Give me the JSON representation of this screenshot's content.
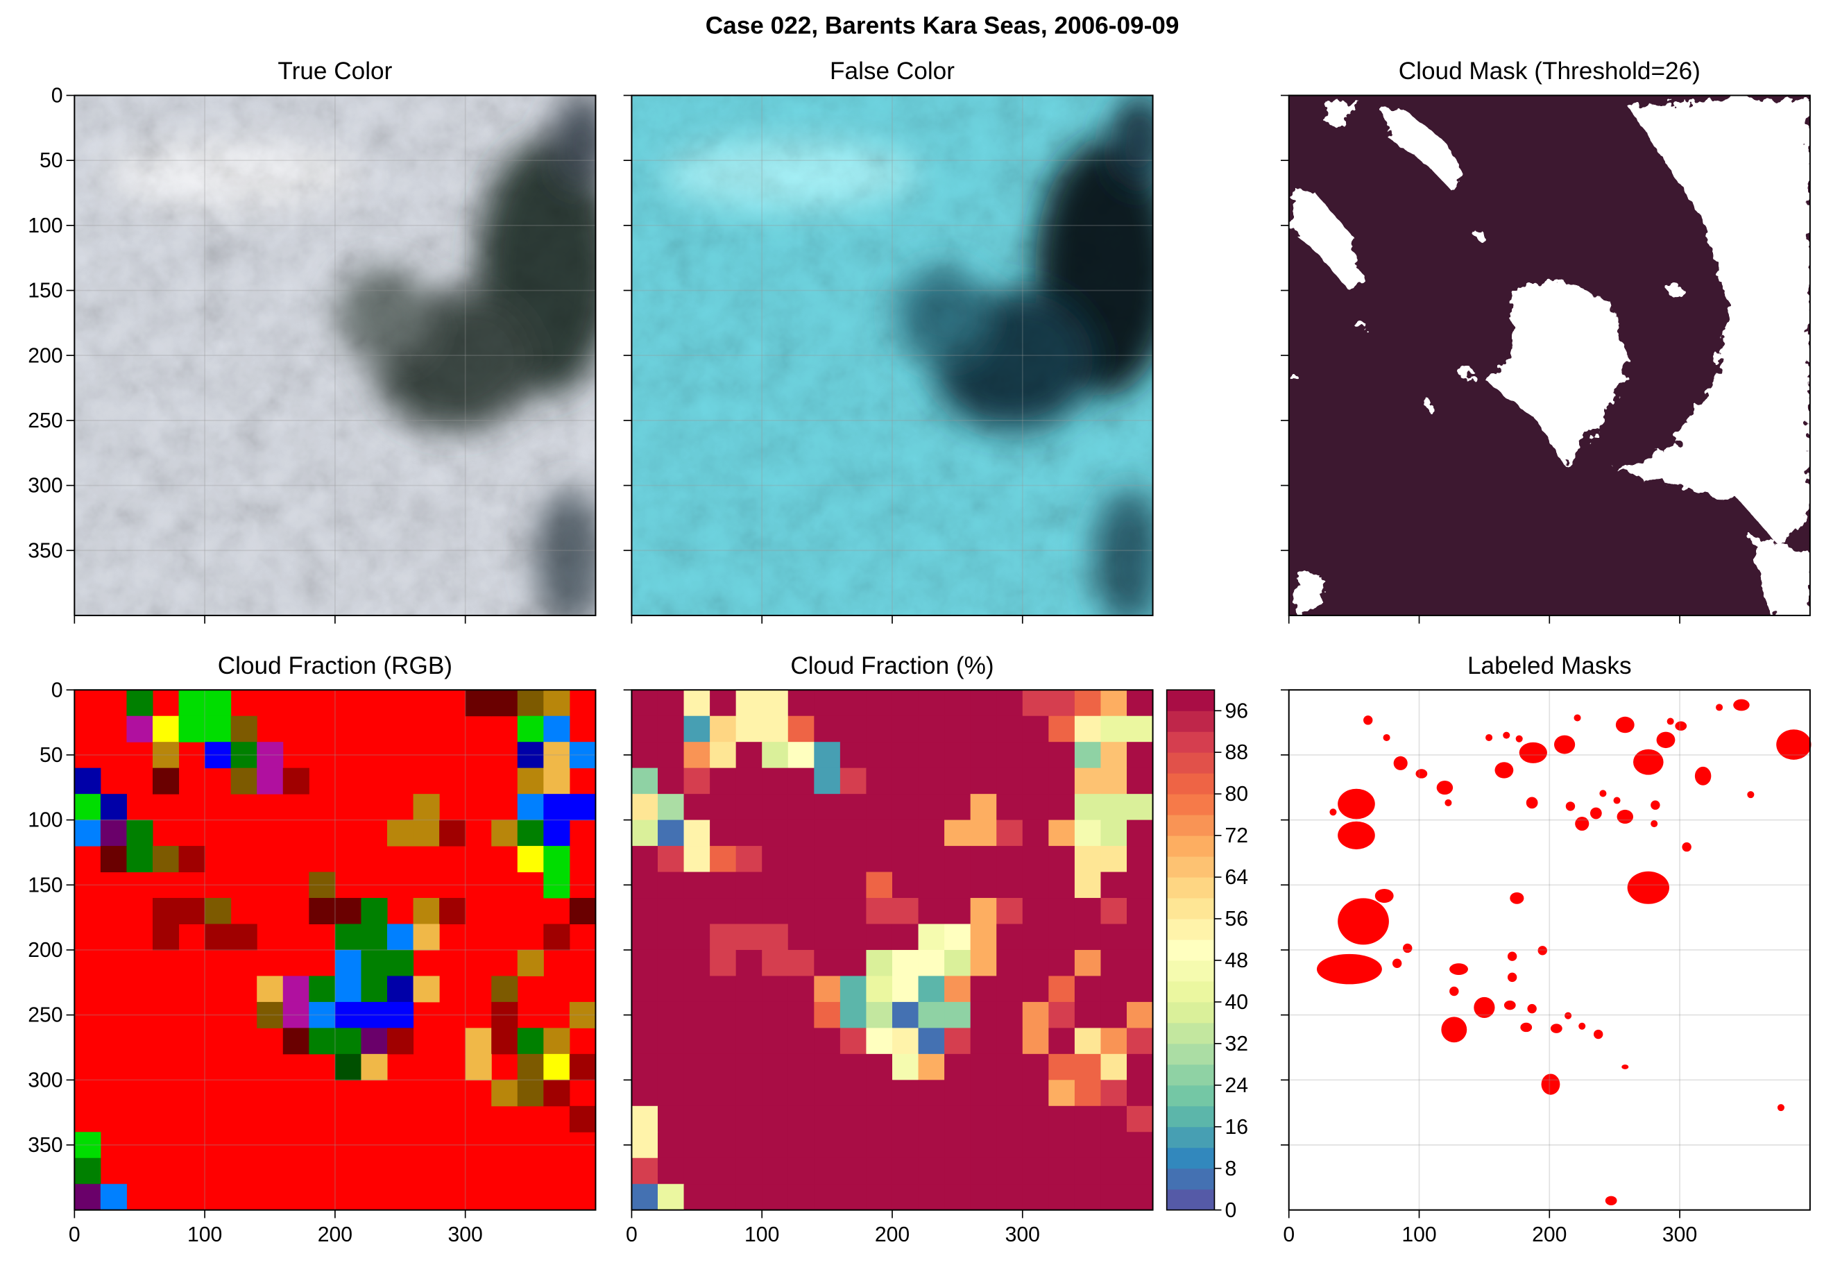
{
  "title": "Case 022, Barents Kara Seas, 2006-09-09",
  "chart_data": [
    {
      "type": "image",
      "title": "True Color",
      "xlim": [
        0,
        400
      ],
      "ylim": [
        400,
        0
      ],
      "xticks": [
        0,
        100,
        200,
        300
      ],
      "yticks": [
        0,
        50,
        100,
        150,
        200,
        250,
        300,
        350
      ],
      "grid": true
    },
    {
      "type": "image",
      "title": "False Color",
      "xlim": [
        0,
        400
      ],
      "ylim": [
        400,
        0
      ],
      "xticks": [
        0,
        100,
        200,
        300
      ],
      "yticks": [
        0,
        50,
        100,
        150,
        200,
        250,
        300,
        350
      ],
      "grid": true
    },
    {
      "type": "image",
      "title": "Cloud Mask (Threshold=26)",
      "xlim": [
        0,
        400
      ],
      "ylim": [
        400,
        0
      ],
      "xticks": [
        0,
        100,
        200,
        300
      ],
      "yticks": [
        0,
        50,
        100,
        150,
        200,
        250,
        300,
        350
      ],
      "grid": false
    },
    {
      "type": "grid",
      "title": "Cloud Fraction (RGB)",
      "xlim": [
        0,
        400
      ],
      "ylim": [
        400,
        0
      ],
      "xticks": [
        0,
        100,
        200,
        300
      ],
      "yticks": [
        0,
        50,
        100,
        150,
        200,
        250,
        300,
        350
      ],
      "grid": true,
      "rows": 20,
      "cols": 20,
      "default_color": "#ff0000",
      "cells": [
        {
          "row": 0,
          "col": 2,
          "color": "#008000"
        },
        {
          "row": 0,
          "col": 4,
          "color": "#00dd00"
        },
        {
          "row": 0,
          "col": 5,
          "color": "#00dd00"
        },
        {
          "row": 0,
          "col": 15,
          "color": "#6a0000"
        },
        {
          "row": 0,
          "col": 16,
          "color": "#6a0000"
        },
        {
          "row": 0,
          "col": 17,
          "color": "#7d5a00"
        },
        {
          "row": 0,
          "col": 18,
          "color": "#b8860b"
        },
        {
          "row": 1,
          "col": 2,
          "color": "#b0109f"
        },
        {
          "row": 1,
          "col": 3,
          "color": "#ffff00"
        },
        {
          "row": 1,
          "col": 4,
          "color": "#00dd00"
        },
        {
          "row": 1,
          "col": 5,
          "color": "#00dd00"
        },
        {
          "row": 1,
          "col": 6,
          "color": "#7d5a00"
        },
        {
          "row": 1,
          "col": 17,
          "color": "#00dd00"
        },
        {
          "row": 1,
          "col": 18,
          "color": "#0080ff"
        },
        {
          "row": 2,
          "col": 3,
          "color": "#b8860b"
        },
        {
          "row": 2,
          "col": 5,
          "color": "#0000ff"
        },
        {
          "row": 2,
          "col": 6,
          "color": "#008000"
        },
        {
          "row": 2,
          "col": 7,
          "color": "#b0109f"
        },
        {
          "row": 2,
          "col": 17,
          "color": "#0000a8"
        },
        {
          "row": 2,
          "col": 18,
          "color": "#f0b848"
        },
        {
          "row": 2,
          "col": 19,
          "color": "#0080ff"
        },
        {
          "row": 3,
          "col": 0,
          "color": "#0000a8"
        },
        {
          "row": 3,
          "col": 3,
          "color": "#6a0000"
        },
        {
          "row": 3,
          "col": 6,
          "color": "#7d5a00"
        },
        {
          "row": 3,
          "col": 7,
          "color": "#b0109f"
        },
        {
          "row": 3,
          "col": 8,
          "color": "#a00000"
        },
        {
          "row": 3,
          "col": 17,
          "color": "#b8860b"
        },
        {
          "row": 3,
          "col": 18,
          "color": "#f0b848"
        },
        {
          "row": 4,
          "col": 0,
          "color": "#00dd00"
        },
        {
          "row": 4,
          "col": 1,
          "color": "#0000a8"
        },
        {
          "row": 4,
          "col": 13,
          "color": "#b8860b"
        },
        {
          "row": 4,
          "col": 17,
          "color": "#0080ff"
        },
        {
          "row": 4,
          "col": 18,
          "color": "#0000ff"
        },
        {
          "row": 4,
          "col": 19,
          "color": "#0000ff"
        },
        {
          "row": 5,
          "col": 0,
          "color": "#0080ff"
        },
        {
          "row": 5,
          "col": 1,
          "color": "#6a006a"
        },
        {
          "row": 5,
          "col": 2,
          "color": "#008000"
        },
        {
          "row": 5,
          "col": 12,
          "color": "#b8860b"
        },
        {
          "row": 5,
          "col": 13,
          "color": "#b8860b"
        },
        {
          "row": 5,
          "col": 14,
          "color": "#a00000"
        },
        {
          "row": 5,
          "col": 16,
          "color": "#b8860b"
        },
        {
          "row": 5,
          "col": 17,
          "color": "#008000"
        },
        {
          "row": 5,
          "col": 18,
          "color": "#0000ff"
        },
        {
          "row": 6,
          "col": 1,
          "color": "#6a0000"
        },
        {
          "row": 6,
          "col": 2,
          "color": "#008000"
        },
        {
          "row": 6,
          "col": 3,
          "color": "#7d5a00"
        },
        {
          "row": 6,
          "col": 4,
          "color": "#a00000"
        },
        {
          "row": 6,
          "col": 17,
          "color": "#ffff00"
        },
        {
          "row": 6,
          "col": 18,
          "color": "#00dd00"
        },
        {
          "row": 7,
          "col": 9,
          "color": "#7d5a00"
        },
        {
          "row": 7,
          "col": 18,
          "color": "#00dd00"
        },
        {
          "row": 8,
          "col": 3,
          "color": "#a00000"
        },
        {
          "row": 8,
          "col": 4,
          "color": "#a00000"
        },
        {
          "row": 8,
          "col": 5,
          "color": "#7d5a00"
        },
        {
          "row": 8,
          "col": 9,
          "color": "#6a0000"
        },
        {
          "row": 8,
          "col": 10,
          "color": "#6a0000"
        },
        {
          "row": 8,
          "col": 11,
          "color": "#008000"
        },
        {
          "row": 8,
          "col": 13,
          "color": "#b8860b"
        },
        {
          "row": 8,
          "col": 14,
          "color": "#a00000"
        },
        {
          "row": 8,
          "col": 19,
          "color": "#6a0000"
        },
        {
          "row": 9,
          "col": 3,
          "color": "#a00000"
        },
        {
          "row": 9,
          "col": 5,
          "color": "#a00000"
        },
        {
          "row": 9,
          "col": 6,
          "color": "#a00000"
        },
        {
          "row": 9,
          "col": 10,
          "color": "#008000"
        },
        {
          "row": 9,
          "col": 11,
          "color": "#008000"
        },
        {
          "row": 9,
          "col": 12,
          "color": "#0080ff"
        },
        {
          "row": 9,
          "col": 13,
          "color": "#f0b848"
        },
        {
          "row": 9,
          "col": 18,
          "color": "#a00000"
        },
        {
          "row": 10,
          "col": 10,
          "color": "#0080ff"
        },
        {
          "row": 10,
          "col": 11,
          "color": "#008000"
        },
        {
          "row": 10,
          "col": 12,
          "color": "#008000"
        },
        {
          "row": 10,
          "col": 17,
          "color": "#b8860b"
        },
        {
          "row": 11,
          "col": 7,
          "color": "#f0b848"
        },
        {
          "row": 11,
          "col": 8,
          "color": "#b0109f"
        },
        {
          "row": 11,
          "col": 9,
          "color": "#008000"
        },
        {
          "row": 11,
          "col": 10,
          "color": "#0080ff"
        },
        {
          "row": 11,
          "col": 11,
          "color": "#008000"
        },
        {
          "row": 11,
          "col": 12,
          "color": "#0000a8"
        },
        {
          "row": 11,
          "col": 13,
          "color": "#f0b848"
        },
        {
          "row": 11,
          "col": 16,
          "color": "#7d5a00"
        },
        {
          "row": 12,
          "col": 7,
          "color": "#7d5a00"
        },
        {
          "row": 12,
          "col": 8,
          "color": "#b0109f"
        },
        {
          "row": 12,
          "col": 9,
          "color": "#0080ff"
        },
        {
          "row": 12,
          "col": 10,
          "color": "#0000ff"
        },
        {
          "row": 12,
          "col": 11,
          "color": "#0000ff"
        },
        {
          "row": 12,
          "col": 12,
          "color": "#0000ff"
        },
        {
          "row": 12,
          "col": 16,
          "color": "#a00000"
        },
        {
          "row": 12,
          "col": 19,
          "color": "#b8860b"
        },
        {
          "row": 13,
          "col": 8,
          "color": "#6a0000"
        },
        {
          "row": 13,
          "col": 9,
          "color": "#008000"
        },
        {
          "row": 13,
          "col": 10,
          "color": "#008000"
        },
        {
          "row": 13,
          "col": 11,
          "color": "#6a006a"
        },
        {
          "row": 13,
          "col": 12,
          "color": "#a00000"
        },
        {
          "row": 13,
          "col": 15,
          "color": "#f0b848"
        },
        {
          "row": 13,
          "col": 16,
          "color": "#a00000"
        },
        {
          "row": 13,
          "col": 17,
          "color": "#008000"
        },
        {
          "row": 13,
          "col": 18,
          "color": "#b8860b"
        },
        {
          "row": 14,
          "col": 10,
          "color": "#005000"
        },
        {
          "row": 14,
          "col": 11,
          "color": "#f0b848"
        },
        {
          "row": 14,
          "col": 15,
          "color": "#f0b848"
        },
        {
          "row": 14,
          "col": 17,
          "color": "#7d5a00"
        },
        {
          "row": 14,
          "col": 18,
          "color": "#ffff00"
        },
        {
          "row": 14,
          "col": 19,
          "color": "#a00000"
        },
        {
          "row": 15,
          "col": 16,
          "color": "#b8860b"
        },
        {
          "row": 15,
          "col": 17,
          "color": "#7d5a00"
        },
        {
          "row": 15,
          "col": 18,
          "color": "#a00000"
        },
        {
          "row": 16,
          "col": 19,
          "color": "#a00000"
        },
        {
          "row": 17,
          "col": 0,
          "color": "#00dd00"
        },
        {
          "row": 18,
          "col": 0,
          "color": "#008000"
        },
        {
          "row": 19,
          "col": 0,
          "color": "#6a006a"
        },
        {
          "row": 19,
          "col": 1,
          "color": "#0080ff"
        }
      ]
    },
    {
      "type": "heatmap",
      "title": "Cloud Fraction (%)",
      "xlim": [
        0,
        400
      ],
      "ylim": [
        400,
        0
      ],
      "xticks": [
        0,
        100,
        200,
        300
      ],
      "yticks": [
        0,
        50,
        100,
        150,
        200,
        250,
        300,
        350
      ],
      "grid": false,
      "clim": [
        0,
        100
      ],
      "nlevels": 25,
      "cticks": [
        0,
        8,
        16,
        24,
        32,
        40,
        48,
        56,
        64,
        72,
        80,
        88,
        96
      ],
      "cmap_colors": [
        "#5e4fa2",
        "#3288bd",
        "#66c2a5",
        "#abdda4",
        "#e6f598",
        "#ffffbf",
        "#fee08b",
        "#fdae61",
        "#f46d43",
        "#d53e4f",
        "#9e0142"
      ],
      "values": [
        [
          100,
          100,
          52,
          100,
          55,
          55,
          100,
          100,
          100,
          100,
          100,
          100,
          100,
          100,
          100,
          88,
          88,
          80,
          68,
          100
        ],
        [
          100,
          100,
          12,
          60,
          55,
          55,
          80,
          100,
          100,
          100,
          100,
          100,
          100,
          100,
          100,
          100,
          82,
          52,
          40,
          40
        ],
        [
          100,
          100,
          72,
          56,
          100,
          36,
          48,
          12,
          100,
          100,
          100,
          100,
          100,
          100,
          100,
          100,
          100,
          24,
          64,
          100
        ],
        [
          26,
          100,
          88,
          100,
          100,
          100,
          100,
          12,
          88,
          100,
          100,
          100,
          100,
          100,
          100,
          100,
          100,
          64,
          64,
          100
        ],
        [
          56,
          28,
          100,
          100,
          100,
          100,
          100,
          100,
          100,
          100,
          100,
          100,
          100,
          68,
          100,
          100,
          100,
          36,
          36,
          36
        ],
        [
          36,
          4,
          52,
          100,
          100,
          100,
          100,
          100,
          100,
          100,
          100,
          100,
          70,
          70,
          88,
          100,
          70,
          44,
          36,
          100
        ],
        [
          100,
          88,
          52,
          80,
          88,
          100,
          100,
          100,
          100,
          100,
          100,
          100,
          100,
          100,
          100,
          100,
          100,
          56,
          56,
          100
        ],
        [
          100,
          100,
          100,
          100,
          100,
          100,
          100,
          100,
          100,
          80,
          100,
          100,
          100,
          100,
          100,
          100,
          100,
          56,
          100,
          100
        ],
        [
          100,
          100,
          100,
          100,
          100,
          100,
          100,
          100,
          100,
          88,
          88,
          100,
          100,
          70,
          88,
          100,
          100,
          100,
          88,
          100
        ],
        [
          100,
          100,
          100,
          88,
          88,
          88,
          100,
          100,
          100,
          100,
          100,
          44,
          48,
          70,
          100,
          100,
          100,
          100,
          100,
          100
        ],
        [
          100,
          100,
          100,
          88,
          100,
          88,
          88,
          100,
          100,
          36,
          48,
          48,
          36,
          70,
          100,
          100,
          100,
          72,
          100,
          100
        ],
        [
          100,
          100,
          100,
          100,
          100,
          100,
          100,
          72,
          16,
          40,
          48,
          16,
          72,
          100,
          100,
          100,
          80,
          100,
          100,
          100
        ],
        [
          100,
          100,
          100,
          100,
          100,
          100,
          100,
          80,
          16,
          32,
          4,
          24,
          24,
          100,
          100,
          72,
          88,
          100,
          100,
          72
        ],
        [
          100,
          100,
          100,
          100,
          100,
          100,
          100,
          100,
          88,
          48,
          52,
          4,
          88,
          100,
          100,
          72,
          100,
          56,
          72,
          88
        ],
        [
          100,
          100,
          100,
          100,
          100,
          100,
          100,
          100,
          100,
          100,
          44,
          68,
          100,
          100,
          100,
          100,
          80,
          80,
          56,
          100
        ],
        [
          100,
          100,
          100,
          100,
          100,
          100,
          100,
          100,
          100,
          100,
          100,
          100,
          100,
          100,
          100,
          100,
          70,
          80,
          88,
          100
        ],
        [
          52,
          100,
          100,
          100,
          100,
          100,
          100,
          100,
          100,
          100,
          100,
          100,
          100,
          100,
          100,
          100,
          100,
          100,
          100,
          88
        ],
        [
          52,
          100,
          100,
          100,
          100,
          100,
          100,
          100,
          100,
          100,
          100,
          100,
          100,
          100,
          100,
          100,
          100,
          100,
          100,
          100
        ],
        [
          88,
          100,
          100,
          100,
          100,
          100,
          100,
          100,
          100,
          100,
          100,
          100,
          100,
          100,
          100,
          100,
          100,
          100,
          100,
          100
        ],
        [
          4,
          40,
          100,
          100,
          100,
          100,
          100,
          100,
          100,
          100,
          100,
          100,
          100,
          100,
          100,
          100,
          100,
          100,
          100,
          100
        ]
      ]
    },
    {
      "type": "image",
      "title": "Labeled Masks",
      "xlim": [
        0,
        400
      ],
      "ylim": [
        400,
        0
      ],
      "xticks": [
        0,
        100,
        200,
        300
      ],
      "yticks": [
        0,
        50,
        100,
        150,
        200,
        250,
        300,
        350
      ],
      "grid": true
    }
  ]
}
